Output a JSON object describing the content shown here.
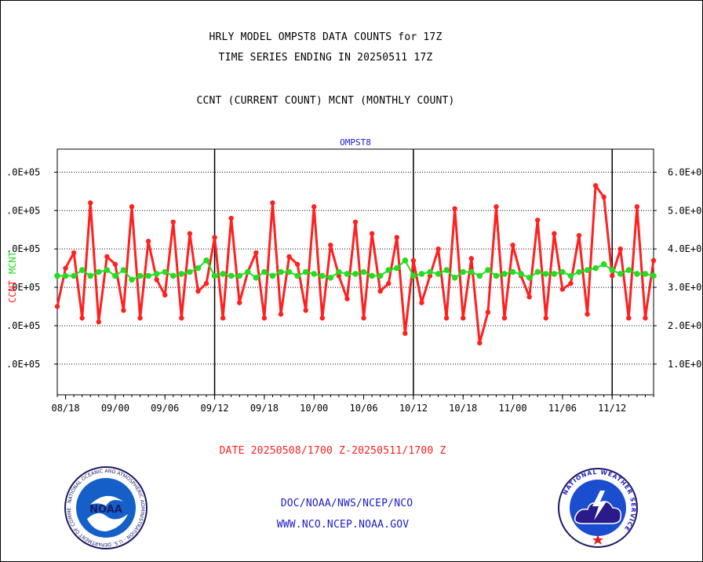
{
  "header": {
    "title_line1": "HRLY MODEL OMPST8 DATA COUNTS for 17Z",
    "title_line2": "TIME SERIES ENDING IN 20250511 17Z",
    "legend_line": "CCNT (CURRENT COUNT) MCNT (MONTHLY COUNT)"
  },
  "chart_data": {
    "type": "line",
    "title": "OMPST8",
    "left_axis_label_ccnt": "CCNT",
    "left_axis_label_mcnt": "MCNT",
    "y_ticks_left": [
      ".0E+05",
      ".0E+05",
      ".0E+05",
      ".0E+05",
      ".0E+05",
      ".0E+05"
    ],
    "y_ticks_right": [
      "1.0E+0",
      "2.0E+0",
      "3.0E+0",
      "4.0E+0",
      "5.0E+0",
      "6.0E+0"
    ],
    "y_tick_values": [
      1.0,
      2.0,
      3.0,
      4.0,
      5.0,
      6.0
    ],
    "ylim": [
      0.2,
      6.6
    ],
    "grid": true,
    "x_ticks": [
      "08/18",
      "09/00",
      "09/06",
      "09/12",
      "09/18",
      "10/00",
      "10/06",
      "10/12",
      "10/18",
      "11/00",
      "11/06",
      "11/12"
    ],
    "x_tick_index": [
      1,
      7,
      13,
      19,
      25,
      31,
      37,
      43,
      49,
      55,
      61,
      67
    ],
    "day_boundaries_index": [
      19,
      43,
      67
    ],
    "x_count": 73,
    "series": [
      {
        "name": "CCNT",
        "color": "#ff2020",
        "values": [
          2.5,
          3.5,
          3.9,
          2.2,
          5.2,
          2.1,
          3.8,
          3.6,
          2.4,
          5.1,
          2.2,
          4.2,
          3.2,
          2.8,
          4.7,
          2.2,
          4.4,
          2.9,
          3.1,
          4.3,
          2.2,
          4.8,
          2.6,
          3.4,
          3.9,
          2.2,
          5.2,
          2.3,
          3.8,
          3.6,
          2.4,
          5.1,
          2.2,
          4.1,
          3.3,
          2.7,
          4.7,
          2.2,
          4.4,
          2.9,
          3.1,
          4.3,
          1.8,
          3.7,
          2.6,
          3.3,
          4.0,
          2.2,
          5.05,
          2.2,
          3.75,
          1.55,
          2.35,
          5.1,
          2.2,
          4.1,
          3.3,
          2.75,
          4.75,
          2.2,
          4.4,
          2.95,
          3.1,
          4.35,
          2.3,
          5.65,
          5.35,
          3.3,
          4.0,
          2.2,
          5.1,
          2.2,
          3.7
        ]
      },
      {
        "name": "MCNT",
        "color": "#22dd22",
        "values": [
          3.3,
          3.3,
          3.3,
          3.45,
          3.3,
          3.4,
          3.45,
          3.3,
          3.45,
          3.2,
          3.3,
          3.3,
          3.35,
          3.4,
          3.3,
          3.35,
          3.4,
          3.5,
          3.7,
          3.3,
          3.35,
          3.3,
          3.3,
          3.4,
          3.25,
          3.4,
          3.3,
          3.4,
          3.4,
          3.3,
          3.4,
          3.35,
          3.3,
          3.25,
          3.4,
          3.35,
          3.35,
          3.4,
          3.3,
          3.3,
          3.45,
          3.5,
          3.7,
          3.3,
          3.35,
          3.4,
          3.35,
          3.45,
          3.25,
          3.4,
          3.4,
          3.3,
          3.45,
          3.3,
          3.35,
          3.4,
          3.35,
          3.25,
          3.4,
          3.35,
          3.35,
          3.4,
          3.3,
          3.4,
          3.45,
          3.5,
          3.6,
          3.45,
          3.35,
          3.45,
          3.35,
          3.35,
          3.3
        ]
      }
    ]
  },
  "footer": {
    "date_range": "DATE 20250508/1700 Z-20250511/1700 Z",
    "org_path": "DOC/NOAA/NWS/NCEP/NCO",
    "website": "WWW.NCO.NCEP.NOAA.GOV"
  },
  "logos": {
    "noaa_inner": "NOAA",
    "noaa_ring": "NATIONAL OCEANIC AND ATMOSPHERIC ADMINISTRATION - U.S. DEPARTMENT OF COMMERCE",
    "nws_ring": "NATIONAL WEATHER SERVICE"
  },
  "colors": {
    "ccnt": "#ff2020",
    "mcnt": "#22dd22",
    "title_blue": "#1a1acc",
    "axis": "#000000"
  }
}
